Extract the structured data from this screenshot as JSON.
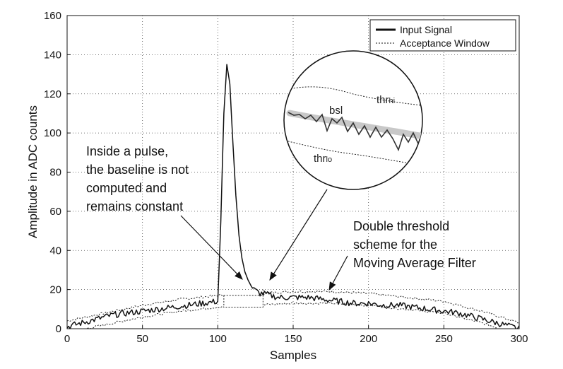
{
  "chart_data": {
    "type": "line",
    "title": "",
    "xlabel": "Samples",
    "ylabel": "Amplitude in ADC counts",
    "xlim": [
      0,
      300
    ],
    "ylim": [
      0,
      160
    ],
    "xticks": [
      0,
      50,
      100,
      150,
      200,
      250,
      300
    ],
    "yticks": [
      0,
      20,
      40,
      60,
      80,
      100,
      120,
      140,
      160
    ],
    "grid": true,
    "legend_position": "top-right",
    "series": [
      {
        "name": "Input Signal",
        "style": "solid-thick",
        "x": [
          0,
          10,
          20,
          30,
          40,
          50,
          60,
          70,
          80,
          90,
          100,
          102,
          104,
          106,
          108,
          110,
          112,
          114,
          116,
          118,
          120,
          122,
          124,
          126,
          128,
          130,
          140,
          150,
          160,
          170,
          180,
          190,
          200,
          210,
          220,
          230,
          240,
          250,
          260,
          270,
          280,
          290,
          300
        ],
        "y": [
          1,
          3,
          5,
          7,
          8,
          9,
          10,
          11,
          12,
          13,
          14,
          55,
          110,
          135,
          125,
          95,
          68,
          48,
          36,
          29,
          25,
          22,
          20,
          19,
          18,
          18,
          16,
          16,
          16,
          15,
          14,
          13,
          13,
          12,
          12,
          11,
          10,
          9,
          8,
          6,
          4,
          2,
          0
        ]
      },
      {
        "name": "Acceptance Window",
        "style": "dotted",
        "x": [
          0,
          25,
          50,
          75,
          100,
          125,
          150,
          175,
          200,
          225,
          250,
          275,
          300
        ],
        "upper": [
          4,
          8,
          12,
          15,
          17,
          18,
          19,
          19,
          18,
          16,
          14,
          9,
          3
        ],
        "lower": [
          -2,
          2,
          6,
          9,
          11,
          12,
          13,
          13,
          12,
          10,
          8,
          3,
          -3
        ],
        "hold_segment": {
          "x": [
            104,
            130
          ],
          "upper": 17,
          "lower": 11
        }
      }
    ],
    "legend": [
      "Input Signal",
      "Acceptance Window"
    ],
    "annotations": [
      "Inside a pulse,",
      "the baseline is not",
      "computed and",
      "remains constant",
      "Double threshold",
      "scheme for the",
      "Moving Average Filter"
    ],
    "inset_labels": {
      "thr_hi": "thr",
      "thr_hi_sub": "hi",
      "bsl": "bsl",
      "thr_lo": "thr",
      "thr_lo_sub": "lo"
    }
  }
}
